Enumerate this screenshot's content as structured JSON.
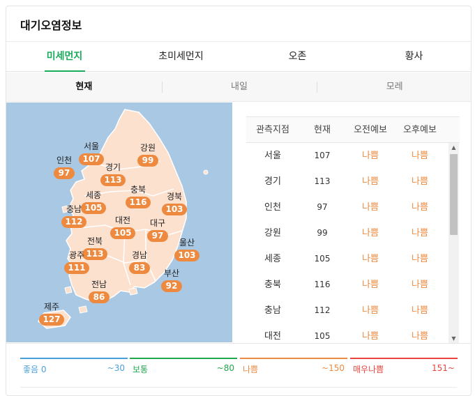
{
  "panel": {
    "title": "대기오염정보"
  },
  "tabs": [
    "미세먼지",
    "초미세먼지",
    "오존",
    "황사"
  ],
  "subtabs": [
    "현재",
    "내일",
    "모레"
  ],
  "map": {
    "regions": [
      {
        "id": "seoul",
        "name": "서울",
        "value": "107"
      },
      {
        "id": "incheon",
        "name": "인천",
        "value": "97"
      },
      {
        "id": "gangwon",
        "name": "강원",
        "value": "99"
      },
      {
        "id": "gyeonggi",
        "name": "경기",
        "value": "113"
      },
      {
        "id": "sejong",
        "name": "세종",
        "value": "105"
      },
      {
        "id": "chungbuk",
        "name": "충북",
        "value": "116"
      },
      {
        "id": "gyeongbuk",
        "name": "경북",
        "value": "103"
      },
      {
        "id": "chungnam",
        "name": "충남",
        "value": "112"
      },
      {
        "id": "daejeon",
        "name": "대전",
        "value": "105"
      },
      {
        "id": "daegu",
        "name": "대구",
        "value": "97"
      },
      {
        "id": "jeonbuk",
        "name": "전북",
        "value": "113"
      },
      {
        "id": "ulsan",
        "name": "울산",
        "value": "103"
      },
      {
        "id": "gwangju",
        "name": "광주",
        "value": "111"
      },
      {
        "id": "gyeongnam",
        "name": "경남",
        "value": "83"
      },
      {
        "id": "busan",
        "name": "부산",
        "value": "92"
      },
      {
        "id": "jeonnam",
        "name": "전남",
        "value": "86"
      },
      {
        "id": "jeju",
        "name": "제주",
        "value": "127"
      }
    ]
  },
  "table": {
    "headers": [
      "관측지점",
      "현재",
      "오전예보",
      "오후예보"
    ],
    "rows": [
      {
        "name": "서울",
        "now": "107",
        "am": "나쁨",
        "pm": "나쁨"
      },
      {
        "name": "경기",
        "now": "113",
        "am": "나쁨",
        "pm": "나쁨"
      },
      {
        "name": "인천",
        "now": "97",
        "am": "나쁨",
        "pm": "나쁨"
      },
      {
        "name": "강원",
        "now": "99",
        "am": "나쁨",
        "pm": "나쁨"
      },
      {
        "name": "세종",
        "now": "105",
        "am": "나쁨",
        "pm": "나쁨"
      },
      {
        "name": "충북",
        "now": "116",
        "am": "나쁨",
        "pm": "나쁨"
      },
      {
        "name": "충남",
        "now": "112",
        "am": "나쁨",
        "pm": "나쁨"
      },
      {
        "name": "대전",
        "now": "105",
        "am": "나쁨",
        "pm": "나쁨"
      }
    ]
  },
  "legend": [
    {
      "label": "좋음 0",
      "range": "~30",
      "color": "#4a9fd8"
    },
    {
      "label": "보통",
      "range": "~80",
      "color": "#21a74f"
    },
    {
      "label": "나쁨",
      "range": "~150",
      "color": "#ee8a40"
    },
    {
      "label": "매우나쁨",
      "range": "151~",
      "color": "#e8453c"
    }
  ],
  "colors": {
    "accent": "#1aab5b",
    "bad": "#ee8a40",
    "sea": "#a8c8e4",
    "land": "#fde1cf"
  },
  "icons": {
    "scroll_up": "triangle-up-icon",
    "scroll_down": "triangle-down-icon"
  }
}
